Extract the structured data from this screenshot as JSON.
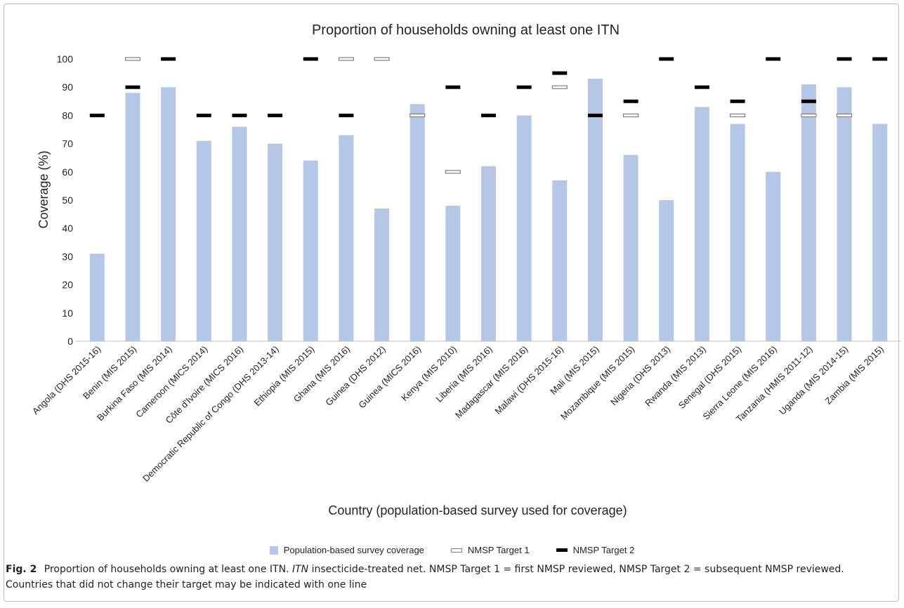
{
  "chart_data": {
    "type": "bar",
    "title": "Proportion of households owning at least one ITN",
    "xlabel": "Country (population-based survey used for coverage)",
    "ylabel": "Coverage (%)",
    "ylim": [
      0,
      100
    ],
    "yticks": [
      0,
      10,
      20,
      30,
      40,
      50,
      60,
      70,
      80,
      90,
      100
    ],
    "grid": false,
    "legend_position": "bottom",
    "categories": [
      "Angola (DHS 2015-16)",
      "Benin  (MIS 2015)",
      "Burkina Faso  (MIS 2014)",
      "Cameroon  (MICS 2014)",
      "Côte d'Ivoire  (MICS 2016)",
      "Democratic Republic of Congo  (DHS 2013-14)",
      "Ethiopia  (MIS 2015)",
      "Ghana  (MIS 2016)",
      "Guinea  (DHS 2012)",
      "Guinea  (MICS 2016)",
      "Kenya  (MIS 2010)",
      "Liberia  (MIS 2016)",
      "Madagascar  (MIS 2016)",
      "Malawi  (DHS 2015-16)",
      "Mali  (MIS 2015)",
      "Mozambique  (MIS 2015)",
      "Nigeria  (DHS 2013)",
      "Rwanda  (MIS 2013)",
      "Senegal  (DHS 2015)",
      "Sierra Leone  (MIS 2016)",
      "Tanzania  (HMIS 2011-12)",
      "Uganda  (MIS 2014-15)",
      "Zambia  (MIS 2015)"
    ],
    "series": [
      {
        "name": "Population-based survey coverage",
        "kind": "bar",
        "color": "#b4c7e7",
        "values": [
          31,
          88,
          90,
          71,
          76,
          70,
          64,
          73,
          47,
          84,
          48,
          62,
          80,
          57,
          93,
          66,
          50,
          83,
          77,
          60,
          91,
          90,
          77
        ]
      },
      {
        "name": "NMSP Target 1",
        "kind": "marker-outline",
        "color": "#7f7f7f",
        "values": [
          null,
          100,
          null,
          null,
          null,
          null,
          null,
          100,
          100,
          80,
          60,
          null,
          null,
          90,
          null,
          80,
          null,
          null,
          80,
          null,
          80,
          80,
          null
        ]
      },
      {
        "name": "NMSP Target 2",
        "kind": "marker-solid",
        "color": "#000000",
        "values": [
          80,
          90,
          100,
          80,
          80,
          80,
          100,
          80,
          null,
          null,
          90,
          80,
          90,
          95,
          80,
          85,
          100,
          90,
          85,
          100,
          85,
          100,
          100
        ]
      }
    ]
  },
  "caption": {
    "label": "Fig. 2",
    "text_1": "Proportion of households owning at least one ITN.",
    "abbr": "ITN",
    "text_2": "insecticide-treated net. NMSP Target 1 = first NMSP reviewed, NMSP Target 2 = subsequent NMSP reviewed. Countries that did not change their target may be indicated with one line"
  }
}
